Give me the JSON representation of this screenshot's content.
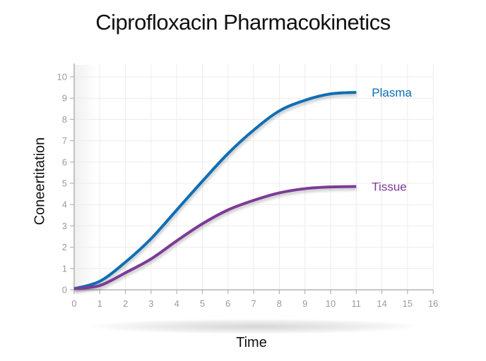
{
  "chart_data": {
    "type": "line",
    "title": "Ciprofloxacin Pharmacokinetics",
    "xlabel": "Time",
    "ylabel": "Coneertitation",
    "x_tick_labels": [
      "0",
      "1",
      "2",
      "3",
      "4",
      "5",
      "6",
      "7",
      "8",
      "9",
      "10",
      "11",
      "14",
      "15",
      "16"
    ],
    "y_tick_labels": [
      "0",
      "1",
      "2",
      "3",
      "4",
      "5",
      "6",
      "7",
      "8",
      "9",
      "10"
    ],
    "ylim": [
      0,
      10
    ],
    "grid": true,
    "legend_position": "inline-right",
    "x": [
      0,
      1,
      2,
      3,
      4,
      5,
      6,
      7,
      8,
      9,
      10,
      11
    ],
    "series": [
      {
        "name": "Plasma",
        "color": "#0a6eb4",
        "values": [
          0.05,
          0.4,
          1.3,
          2.4,
          3.75,
          5.1,
          6.4,
          7.5,
          8.4,
          8.9,
          9.2,
          9.27
        ]
      },
      {
        "name": "Tissue",
        "color": "#7b3a96",
        "values": [
          0.05,
          0.2,
          0.8,
          1.45,
          2.3,
          3.1,
          3.75,
          4.2,
          4.55,
          4.75,
          4.83,
          4.85
        ]
      }
    ]
  },
  "colors": {
    "axis": "#b4b4b4",
    "grid": "#ececec",
    "tick_text": "#9a9a9a",
    "title_text": "#111111"
  }
}
